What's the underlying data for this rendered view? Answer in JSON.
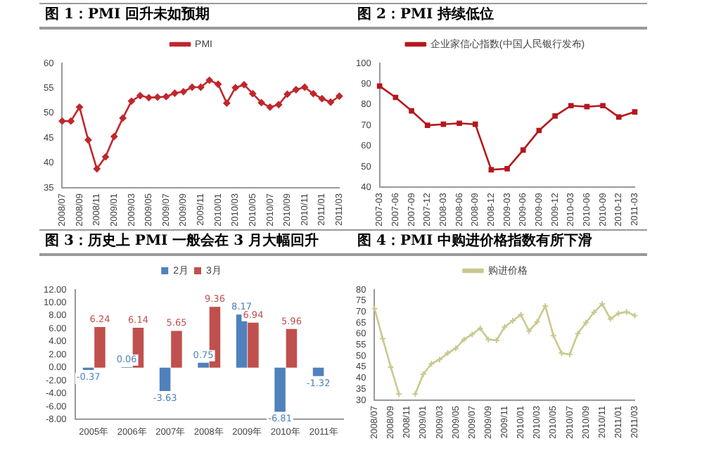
{
  "chart_data": [
    {
      "type": "line",
      "title": "图 1：PMI 回升未如预期",
      "categories": [
        "2008/07",
        null,
        "2008/09",
        null,
        "2008/11",
        null,
        "2009/01",
        null,
        "2009/03",
        null,
        "2009/05",
        null,
        "2009/07",
        null,
        "2009/09",
        null,
        "2009/11",
        null,
        "2010/01",
        null,
        "2010/03",
        null,
        "2010/05",
        null,
        "2010/07",
        null,
        "2010/09",
        null,
        "2010/11",
        null,
        "2011/01",
        null,
        "2011/03"
      ],
      "series": [
        {
          "name": "PMI",
          "color": "#c0272d",
          "values": [
            48.4,
            48.4,
            51.2,
            44.6,
            38.8,
            41.2,
            45.3,
            49.0,
            52.4,
            53.5,
            53.1,
            53.2,
            53.3,
            54.0,
            54.3,
            55.2,
            55.2,
            56.6,
            55.8,
            52.0,
            55.1,
            55.7,
            53.9,
            52.1,
            51.2,
            51.7,
            53.8,
            54.7,
            55.2,
            53.9,
            52.9,
            52.2,
            53.4
          ]
        }
      ],
      "ylim": [
        35,
        60
      ],
      "yticks": [
        35,
        40,
        45,
        50,
        55,
        60
      ],
      "grid": false,
      "legend": "top",
      "marker": "diamond",
      "line_style": "solid"
    },
    {
      "type": "line",
      "title": "图 2：PMI 持续低位",
      "categories": [
        "2007-03",
        "2007-06",
        "2007-09",
        "2007-12",
        "2008-03",
        "2008-06",
        "2008-09",
        "2008-12",
        "2009-03",
        "2009-06",
        "2009-09",
        "2009-12",
        "2010-03",
        "2010-06",
        "2010-09",
        "2010-12",
        "2011-03"
      ],
      "series": [
        {
          "name": "企业家信心指数(中国人民银行发布)",
          "color": "#b5171d",
          "values": [
            89,
            83.5,
            77,
            70,
            70.5,
            71,
            70.5,
            48.5,
            49,
            58,
            67.5,
            74.5,
            79.5,
            79,
            79.5,
            74,
            76.5
          ]
        }
      ],
      "ylim": [
        40,
        100
      ],
      "yticks": [
        40,
        50,
        60,
        70,
        80,
        90,
        100
      ],
      "grid": false,
      "legend": "top",
      "marker": "square",
      "line_style": "solid"
    },
    {
      "type": "bar",
      "title": "图 3：历史上 PMI 一般会在 3 月大幅回升",
      "categories": [
        "2005年",
        "2006年",
        "2007年",
        "2008年",
        "2009年",
        "2010年",
        "2011年"
      ],
      "series": [
        {
          "name": "2月",
          "color": "#4f81bd",
          "values": [
            -0.37,
            0.06,
            -3.63,
            0.75,
            8.17,
            -6.81,
            -1.32
          ]
        },
        {
          "name": "3月",
          "color": "#c0504d",
          "values": [
            6.24,
            6.14,
            5.65,
            9.36,
            6.94,
            5.96,
            null
          ]
        }
      ],
      "ylim": [
        -8,
        12
      ],
      "yticks": [
        {
          "value": -8,
          "label": "-8.00"
        },
        {
          "value": -6,
          "label": "-6.00"
        },
        {
          "value": -4,
          "label": "-4.00"
        },
        {
          "value": -2,
          "label": "-2.00"
        },
        {
          "value": 0,
          "label": "0.00"
        },
        {
          "value": 2,
          "label": "2.00"
        },
        {
          "value": 4,
          "label": "4.00"
        },
        {
          "value": 6,
          "label": "6.00"
        },
        {
          "value": 8,
          "label": "8.00"
        },
        {
          "value": 10,
          "label": "10.00"
        },
        {
          "value": 12,
          "label": "12.00"
        }
      ],
      "grid": false,
      "legend": "top",
      "data_labels": true
    },
    {
      "type": "line",
      "title": "图 4：PMI 中购进价格指数有所下滑",
      "categories": [
        "2008/07",
        null,
        "2008/09",
        null,
        "2008/11",
        null,
        "2009/01",
        null,
        "2009/03",
        null,
        "2009/05",
        null,
        "2009/07",
        null,
        "2009/09",
        null,
        "2009/11",
        null,
        "2010/01",
        null,
        "2010/03",
        null,
        "2010/05",
        null,
        "2010/07",
        null,
        "2010/09",
        null,
        "2010/11",
        null,
        "2011/01",
        null,
        "2011/03"
      ],
      "series": [
        {
          "name": "购进价格",
          "color": "#c9c98f",
          "values": [
            71.5,
            57.9,
            45,
            32.8,
            null,
            32.8,
            41.8,
            46.5,
            48.4,
            51.3,
            53.5,
            57.5,
            59.8,
            62.6,
            57.5,
            57.1,
            63.2,
            66,
            68.7,
            61.3,
            65.5,
            72.7,
            59.2,
            51.3,
            50.7,
            60.2,
            65.1,
            69.8,
            73.6,
            66.8,
            69.3,
            70,
            68.3
          ]
        }
      ],
      "ylim": [
        30,
        80
      ],
      "yticks": [
        30,
        35,
        40,
        45,
        50,
        55,
        60,
        65,
        70,
        75,
        80
      ],
      "grid": false,
      "legend": "top",
      "marker": "cross",
      "line_style": "solid"
    }
  ]
}
